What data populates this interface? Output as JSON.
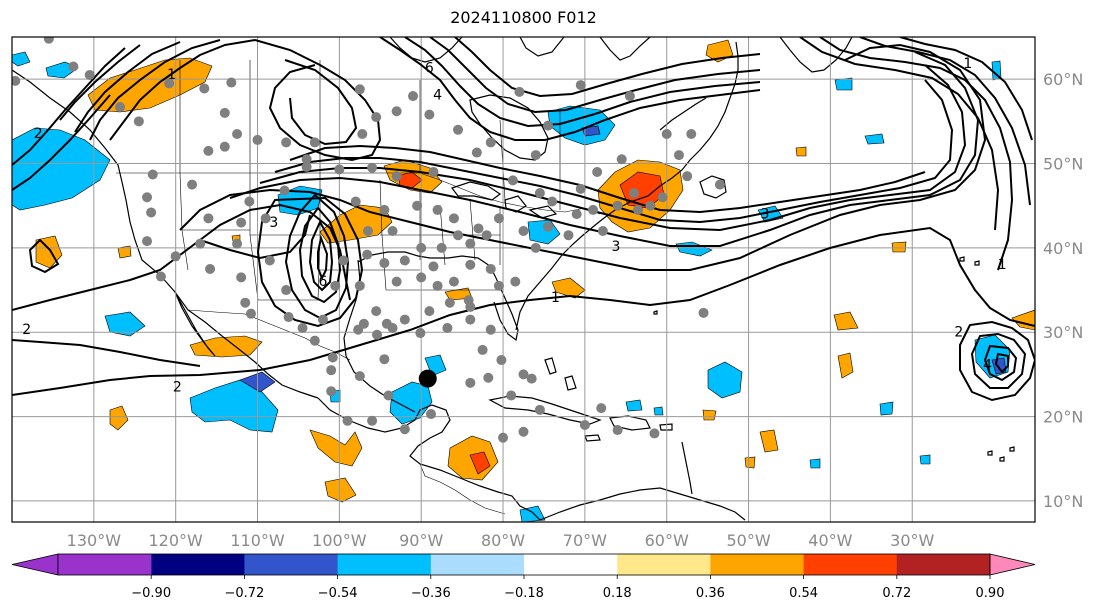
{
  "title": "2024110800 F012",
  "map": {
    "projection": "PlateCarree",
    "lon_range": [
      -140,
      -15
    ],
    "lat_range": [
      7.5,
      65.0
    ],
    "lat_ticks": [
      {
        "value": 60,
        "label": "60°N"
      },
      {
        "value": 50,
        "label": "50°N"
      },
      {
        "value": 40,
        "label": "40°N"
      },
      {
        "value": 30,
        "label": "30°N"
      },
      {
        "value": 20,
        "label": "20°N"
      },
      {
        "value": 10,
        "label": "10°N"
      }
    ],
    "lon_ticks": [
      {
        "value": -130,
        "label": "130°W"
      },
      {
        "value": -120,
        "label": "120°W"
      },
      {
        "value": -110,
        "label": "110°W"
      },
      {
        "value": -100,
        "label": "100°W"
      },
      {
        "value": -90,
        "label": "90°W"
      },
      {
        "value": -80,
        "label": "80°W"
      },
      {
        "value": -70,
        "label": "70°W"
      },
      {
        "value": -60,
        "label": "60°W"
      },
      {
        "value": -50,
        "label": "50°W"
      },
      {
        "value": -40,
        "label": "40°W"
      },
      {
        "value": -30,
        "label": "30°W"
      }
    ],
    "storm_center": {
      "lon": -89.2,
      "lat": 24.5
    },
    "colors": {
      "coast": "#000000",
      "border": "#000000",
      "grid": "#999999",
      "contour": "#000000",
      "station": "#7f7f7f",
      "storm": "#000000"
    },
    "contour_labels": [
      {
        "text": "2",
        "lon": -138.2,
        "lat": 29.8
      },
      {
        "text": "2",
        "lon": -136.8,
        "lat": 53.0
      },
      {
        "text": "1",
        "lon": -120.5,
        "lat": 60.0
      },
      {
        "text": "6",
        "lon": -89.0,
        "lat": 60.8
      },
      {
        "text": "4",
        "lon": -88.0,
        "lat": 57.6
      },
      {
        "text": "2",
        "lon": -119.8,
        "lat": 23.0
      },
      {
        "text": "3",
        "lon": -108.0,
        "lat": 42.5
      },
      {
        "text": "6",
        "lon": -102.0,
        "lat": 35.5
      },
      {
        "text": "3",
        "lon": -66.2,
        "lat": 39.6
      },
      {
        "text": "1",
        "lon": -73.6,
        "lat": 33.6
      },
      {
        "text": "3",
        "lon": -48.0,
        "lat": 43.5
      },
      {
        "text": "1",
        "lon": -23.2,
        "lat": 61.3
      },
      {
        "text": "1",
        "lon": -19.0,
        "lat": 37.5
      },
      {
        "text": "2",
        "lon": -24.3,
        "lat": 29.5
      },
      {
        "text": "4",
        "lon": -20.8,
        "lat": 25.6
      }
    ],
    "stations": [
      [
        -139.6,
        59.8
      ],
      [
        -135.5,
        64.8
      ],
      [
        -132.5,
        61.5
      ],
      [
        -130.5,
        60.5
      ],
      [
        -120.8,
        59.5
      ],
      [
        -113.2,
        59.6
      ],
      [
        -116.5,
        58.9
      ],
      [
        -114.0,
        56.0
      ],
      [
        -126.8,
        56.7
      ],
      [
        -124.5,
        55.0
      ],
      [
        -116.0,
        51.5
      ],
      [
        -114.0,
        52.0
      ],
      [
        -112.5,
        53.5
      ],
      [
        -110.0,
        52.8
      ],
      [
        -106.5,
        52.5
      ],
      [
        -104.0,
        50.5
      ],
      [
        -103.0,
        52.5
      ],
      [
        -97.2,
        53.5
      ],
      [
        -95.5,
        55.5
      ],
      [
        -93.0,
        56.2
      ],
      [
        -97.5,
        58.8
      ],
      [
        -91.0,
        58.0
      ],
      [
        -89.0,
        55.8
      ],
      [
        -85.5,
        54.0
      ],
      [
        -83.2,
        51.3
      ],
      [
        -88.5,
        49.0
      ],
      [
        -93.0,
        48.5
      ],
      [
        -96.0,
        49.5
      ],
      [
        -100.0,
        49.3
      ],
      [
        -106.7,
        46.8
      ],
      [
        -111.0,
        45.5
      ],
      [
        -109.0,
        43.5
      ],
      [
        -112.0,
        43.0
      ],
      [
        -116.0,
        43.5
      ],
      [
        -123.0,
        44.2
      ],
      [
        -122.8,
        48.7
      ],
      [
        -118.0,
        47.5
      ],
      [
        -123.5,
        46.0
      ],
      [
        -123.5,
        40.8
      ],
      [
        -121.8,
        36.6
      ],
      [
        -120.0,
        39.0
      ],
      [
        -117.0,
        40.5
      ],
      [
        -115.8,
        37.5
      ],
      [
        -112.5,
        40.5
      ],
      [
        -112.0,
        36.5
      ],
      [
        -108.5,
        38.5
      ],
      [
        -106.5,
        35.0
      ],
      [
        -111.5,
        33.5
      ],
      [
        -110.8,
        32.2
      ],
      [
        -106.2,
        31.8
      ],
      [
        -104.5,
        30.5
      ],
      [
        -102.0,
        31.5
      ],
      [
        -100.5,
        35.5
      ],
      [
        -97.5,
        35.5
      ],
      [
        -99.5,
        38.5
      ],
      [
        -96.6,
        39.2
      ],
      [
        -94.5,
        38.2
      ],
      [
        -93.0,
        36.0
      ],
      [
        -95.5,
        32.5
      ],
      [
        -97.0,
        31.0
      ],
      [
        -97.7,
        30.3
      ],
      [
        -95.4,
        29.7
      ],
      [
        -93.5,
        30.5
      ],
      [
        -92.0,
        31.5
      ],
      [
        -90.1,
        29.9
      ],
      [
        -89.0,
        32.5
      ],
      [
        -86.5,
        33.5
      ],
      [
        -86.8,
        30.5
      ],
      [
        -84.0,
        31.5
      ],
      [
        -84.2,
        33.8
      ],
      [
        -81.5,
        30.3
      ],
      [
        -82.5,
        27.9
      ],
      [
        -80.2,
        26.7
      ],
      [
        -81.8,
        24.6
      ],
      [
        -80.5,
        35.5
      ],
      [
        -78.5,
        36.0
      ],
      [
        -81.5,
        37.5
      ],
      [
        -84.0,
        38.0
      ],
      [
        -86.0,
        36.0
      ],
      [
        -88.0,
        35.5
      ],
      [
        -90.0,
        36.5
      ],
      [
        -92.0,
        38.5
      ],
      [
        -90.0,
        40.0
      ],
      [
        -87.5,
        40.0
      ],
      [
        -85.5,
        41.5
      ],
      [
        -84.0,
        40.5
      ],
      [
        -83.0,
        42.3
      ],
      [
        -86.0,
        43.5
      ],
      [
        -88.0,
        44.5
      ],
      [
        -90.5,
        45.0
      ],
      [
        -94.5,
        44.5
      ],
      [
        -98.0,
        45.5
      ],
      [
        -96.5,
        42.0
      ],
      [
        -93.5,
        42.0
      ],
      [
        -82.0,
        41.5
      ],
      [
        -80.5,
        43.5
      ],
      [
        -77.5,
        42.0
      ],
      [
        -76.0,
        40.0
      ],
      [
        -74.5,
        42.5
      ],
      [
        -72.0,
        41.5
      ],
      [
        -71.0,
        44.0
      ],
      [
        -74.0,
        45.5
      ],
      [
        -75.5,
        46.5
      ],
      [
        -69.0,
        44.5
      ],
      [
        -70.5,
        47.0
      ],
      [
        -64.0,
        46.5
      ],
      [
        -60.5,
        46.0
      ],
      [
        -62.0,
        45.0
      ],
      [
        -63.5,
        44.5
      ],
      [
        -66.0,
        45.0
      ],
      [
        -57.5,
        48.5
      ],
      [
        -58.5,
        51.0
      ],
      [
        -60.0,
        53.5
      ],
      [
        -53.5,
        47.5
      ],
      [
        -64.5,
        58.0
      ],
      [
        -70.5,
        59.3
      ],
      [
        -78.0,
        58.5
      ],
      [
        -81.5,
        52.5
      ],
      [
        -78.8,
        48.0
      ],
      [
        -76.0,
        51.0
      ],
      [
        -68.5,
        49.0
      ],
      [
        -65.5,
        50.5
      ],
      [
        -74.5,
        54.5
      ],
      [
        -57.0,
        53.5
      ],
      [
        -79.0,
        22.5
      ],
      [
        -75.5,
        20.8
      ],
      [
        -77.5,
        18.2
      ],
      [
        -70.0,
        19.0
      ],
      [
        -66.0,
        18.4
      ],
      [
        -61.5,
        18.0
      ],
      [
        -68.0,
        21.0
      ],
      [
        -76.5,
        24.5
      ],
      [
        -77.5,
        25.0
      ],
      [
        -84.0,
        24.0
      ],
      [
        -92.0,
        18.5
      ],
      [
        -96.0,
        19.5
      ],
      [
        -99.0,
        19.5
      ],
      [
        -94.0,
        22.5
      ],
      [
        -94.5,
        26.8
      ],
      [
        -101.0,
        25.5
      ],
      [
        -100.8,
        27.0
      ],
      [
        -103.0,
        29.0
      ],
      [
        -88.8,
        20.3
      ],
      [
        -94.2,
        31.0
      ],
      [
        -88.5,
        37.8
      ],
      [
        -104.0,
        49.6
      ],
      [
        -67.8,
        42.0
      ],
      [
        -55.5,
        32.3
      ],
      [
        -97.5,
        24.8
      ],
      [
        -80.0,
        17.5
      ],
      [
        -84.0,
        33.0
      ],
      [
        -101.0,
        23.0
      ]
    ]
  },
  "colorbar": {
    "tick_labels": [
      "−0.90",
      "−0.72",
      "−0.54",
      "−0.36",
      "−0.18",
      "0.18",
      "0.36",
      "0.54",
      "0.72",
      "0.90"
    ],
    "under_color": "#9933cc",
    "over_color": "#ff88bb",
    "colors": [
      "#9933cc",
      "#000080",
      "#3355cc",
      "#00bfff",
      "#aaddff",
      "#ffffff",
      "#ffe88a",
      "#ffa500",
      "#ff4000",
      "#b22222",
      "#ff88bb"
    ]
  }
}
